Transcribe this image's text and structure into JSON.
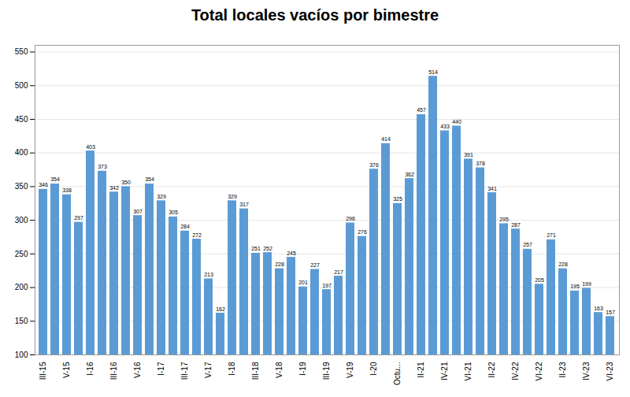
{
  "chart_data": {
    "type": "bar",
    "title": "Total locales vacíos por bimestre",
    "categories": [
      "III-15",
      null,
      "V-15",
      null,
      "I-16",
      null,
      "III-16",
      null,
      "V-16",
      null,
      "I-17",
      null,
      "III-17",
      null,
      "V-17",
      null,
      "I-18",
      null,
      "III-18",
      null,
      "V-18",
      null,
      "I-19",
      null,
      "III-19",
      null,
      "V-19",
      null,
      "I-20",
      null,
      "Octu...",
      null,
      "II-21",
      null,
      "IV-21",
      null,
      "VI-21",
      null,
      "II-22",
      null,
      "IV-22",
      null,
      "VI-22",
      null,
      "II-23",
      null,
      "IV-23",
      null,
      "VI-23"
    ],
    "values": [
      346,
      354,
      338,
      297,
      403,
      373,
      342,
      350,
      307,
      354,
      329,
      305,
      284,
      272,
      213,
      162,
      329,
      317,
      251,
      252,
      228,
      245,
      201,
      227,
      197,
      217,
      296,
      276,
      376,
      414,
      325,
      362,
      457,
      514,
      433,
      440,
      391,
      378,
      341,
      295,
      287,
      257,
      205,
      271,
      228,
      195,
      199,
      163,
      157
    ],
    "color": "#5B9BD5",
    "ylim": [
      100,
      560
    ],
    "yticks": [
      100,
      150,
      200,
      250,
      300,
      350,
      400,
      450,
      500,
      550
    ],
    "grid": true,
    "data_labels": true
  }
}
